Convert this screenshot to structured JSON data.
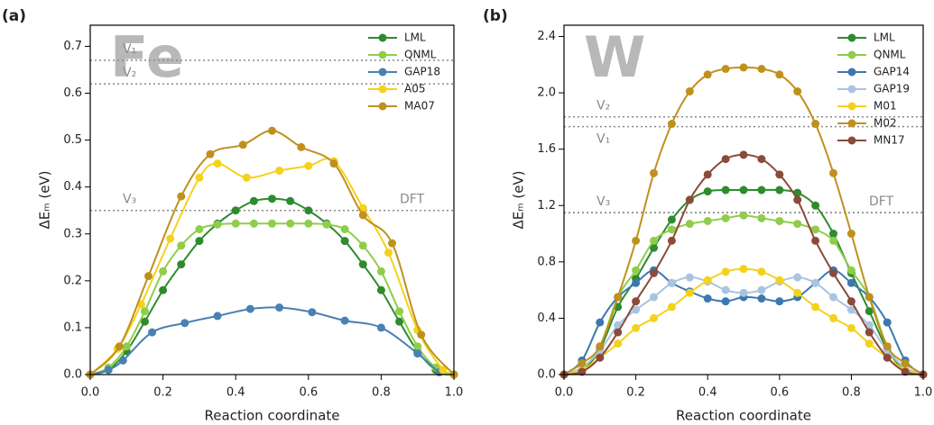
{
  "chart_data": [
    {
      "type": "line",
      "panel_label": "(a)",
      "element": "Fe",
      "xlabel": "Reaction coordinate",
      "ylabel": "ΔEₘ (eV)",
      "xlim": [
        0,
        1
      ],
      "ylim": [
        0,
        0.745
      ],
      "xticks": [
        {
          "value": 0,
          "label": "0.0"
        },
        0.2,
        0.4,
        0.6,
        0.8,
        {
          "value": 1,
          "label": "1.0"
        }
      ],
      "yticks": [
        {
          "value": 0,
          "label": "0.0"
        },
        0.1,
        0.2,
        0.3,
        0.4,
        0.5,
        0.6,
        0.7
      ],
      "legend": "upper right",
      "hlines": [
        {
          "value": 0.67,
          "label": "V₁",
          "side": "left"
        },
        {
          "value": 0.62,
          "label": "V₂",
          "side": "left"
        },
        {
          "value": 0.35,
          "label": "V₃",
          "side": "left"
        },
        {
          "value": 0.35,
          "label": "DFT",
          "side": "right"
        }
      ],
      "x": [
        0,
        0.05,
        0.1,
        0.15,
        0.2,
        0.25,
        0.3,
        0.35,
        0.4,
        0.45,
        0.5,
        0.55,
        0.6,
        0.65,
        0.7,
        0.75,
        0.8,
        0.85,
        0.9,
        0.95,
        1
      ],
      "series": [
        {
          "name": "LML",
          "color": "#2e8b2e",
          "values": [
            0,
            0.01,
            0.05,
            0.113,
            0.18,
            0.235,
            0.285,
            0.322,
            0.35,
            0.37,
            0.375,
            0.37,
            0.35,
            0.322,
            0.285,
            0.235,
            0.18,
            0.113,
            0.05,
            0.01,
            0
          ]
        },
        {
          "name": "QNML",
          "color": "#8fcd4a",
          "values": [
            0,
            0.015,
            0.06,
            0.135,
            0.22,
            0.275,
            0.31,
            0.32,
            0.322,
            0.322,
            0.322,
            0.322,
            0.322,
            0.32,
            0.31,
            0.275,
            0.22,
            0.135,
            0.06,
            0.015,
            0
          ]
        },
        {
          "name": "GAP18",
          "color": "#4a80b4",
          "x": [
            0,
            0.05,
            0.09,
            0.17,
            0.26,
            0.35,
            0.44,
            0.52,
            0.61,
            0.7,
            0.8,
            0.9,
            0.96,
            1
          ],
          "values": [
            0,
            0.01,
            0.03,
            0.09,
            0.11,
            0.125,
            0.14,
            0.143,
            0.133,
            0.115,
            0.1,
            0.045,
            0.005,
            0
          ]
        },
        {
          "name": "A05",
          "color": "#f4d21c",
          "x": [
            0,
            0.075,
            0.14,
            0.22,
            0.3,
            0.35,
            0.43,
            0.52,
            0.6,
            0.67,
            0.75,
            0.82,
            0.9,
            0.97,
            1
          ],
          "values": [
            0,
            0.055,
            0.15,
            0.29,
            0.42,
            0.45,
            0.42,
            0.435,
            0.445,
            0.455,
            0.355,
            0.26,
            0.095,
            0.01,
            0
          ]
        },
        {
          "name": "MA07",
          "color": "#c0901e",
          "x": [
            0,
            0.08,
            0.16,
            0.25,
            0.33,
            0.42,
            0.5,
            0.58,
            0.67,
            0.75,
            0.83,
            0.91,
            1
          ],
          "values": [
            0,
            0.06,
            0.21,
            0.38,
            0.47,
            0.49,
            0.52,
            0.485,
            0.45,
            0.34,
            0.28,
            0.085,
            0
          ]
        }
      ]
    },
    {
      "type": "line",
      "panel_label": "(b)",
      "element": "W",
      "xlabel": "Reaction coordinate",
      "ylabel": "ΔEₘ (eV)",
      "xlim": [
        0,
        1
      ],
      "ylim": [
        0,
        2.48
      ],
      "xticks": [
        {
          "value": 0,
          "label": "0.0"
        },
        0.2,
        0.4,
        0.6,
        0.8,
        {
          "value": 1,
          "label": "1.0"
        }
      ],
      "yticks": [
        {
          "value": 0,
          "label": "0.0"
        },
        0.4,
        0.8,
        1.2,
        1.6,
        {
          "value": 2,
          "label": "2.0"
        },
        2.4
      ],
      "legend": "upper right",
      "hlines": [
        {
          "value": 1.83,
          "label": "V₂",
          "side": "left"
        },
        {
          "value": 1.76,
          "label": "V₁",
          "side": "left"
        },
        {
          "value": 1.15,
          "label": "V₃",
          "side": "left"
        },
        {
          "value": 1.15,
          "label": "DFT",
          "side": "right"
        }
      ],
      "x": [
        0,
        0.05,
        0.1,
        0.15,
        0.2,
        0.25,
        0.3,
        0.35,
        0.4,
        0.45,
        0.5,
        0.55,
        0.6,
        0.65,
        0.7,
        0.75,
        0.8,
        0.85,
        0.9,
        0.95,
        1
      ],
      "series": [
        {
          "name": "LML",
          "color": "#2e8b2e",
          "values": [
            0,
            0.03,
            0.18,
            0.48,
            0.68,
            0.9,
            1.1,
            1.24,
            1.3,
            1.31,
            1.31,
            1.31,
            1.31,
            1.29,
            1.2,
            1.0,
            0.72,
            0.45,
            0.18,
            0.03,
            0
          ]
        },
        {
          "name": "QNML",
          "color": "#8fcd4a",
          "values": [
            0,
            0.04,
            0.2,
            0.55,
            0.74,
            0.95,
            1.03,
            1.07,
            1.09,
            1.11,
            1.13,
            1.11,
            1.09,
            1.07,
            1.03,
            0.95,
            0.74,
            0.55,
            0.2,
            0.04,
            0
          ]
        },
        {
          "name": "GAP14",
          "color": "#3b78b0",
          "values": [
            0,
            0.1,
            0.37,
            0.55,
            0.65,
            0.74,
            0.65,
            0.59,
            0.54,
            0.52,
            0.55,
            0.54,
            0.52,
            0.55,
            0.65,
            0.74,
            0.65,
            0.55,
            0.37,
            0.1,
            0
          ]
        },
        {
          "name": "GAP19",
          "color": "#a9c4e0",
          "values": [
            0,
            0.05,
            0.17,
            0.35,
            0.46,
            0.55,
            0.65,
            0.69,
            0.66,
            0.6,
            0.58,
            0.6,
            0.66,
            0.69,
            0.65,
            0.55,
            0.46,
            0.35,
            0.17,
            0.05,
            0
          ]
        },
        {
          "name": "M01",
          "color": "#f4d21c",
          "values": [
            0,
            0.03,
            0.12,
            0.22,
            0.33,
            0.4,
            0.48,
            0.58,
            0.67,
            0.73,
            0.75,
            0.73,
            0.67,
            0.58,
            0.48,
            0.4,
            0.33,
            0.22,
            0.12,
            0.03,
            0
          ]
        },
        {
          "name": "M02",
          "color": "#c0901e",
          "values": [
            0,
            0.08,
            0.2,
            0.55,
            0.95,
            1.43,
            1.78,
            2.01,
            2.13,
            2.17,
            2.18,
            2.17,
            2.13,
            2.01,
            1.78,
            1.43,
            1.0,
            0.55,
            0.2,
            0.08,
            0
          ]
        },
        {
          "name": "MN17",
          "color": "#8b4a3a",
          "values": [
            0,
            0.02,
            0.12,
            0.3,
            0.52,
            0.72,
            0.95,
            1.24,
            1.42,
            1.53,
            1.56,
            1.53,
            1.42,
            1.24,
            0.95,
            0.72,
            0.52,
            0.3,
            0.12,
            0.02,
            0
          ]
        }
      ]
    }
  ]
}
